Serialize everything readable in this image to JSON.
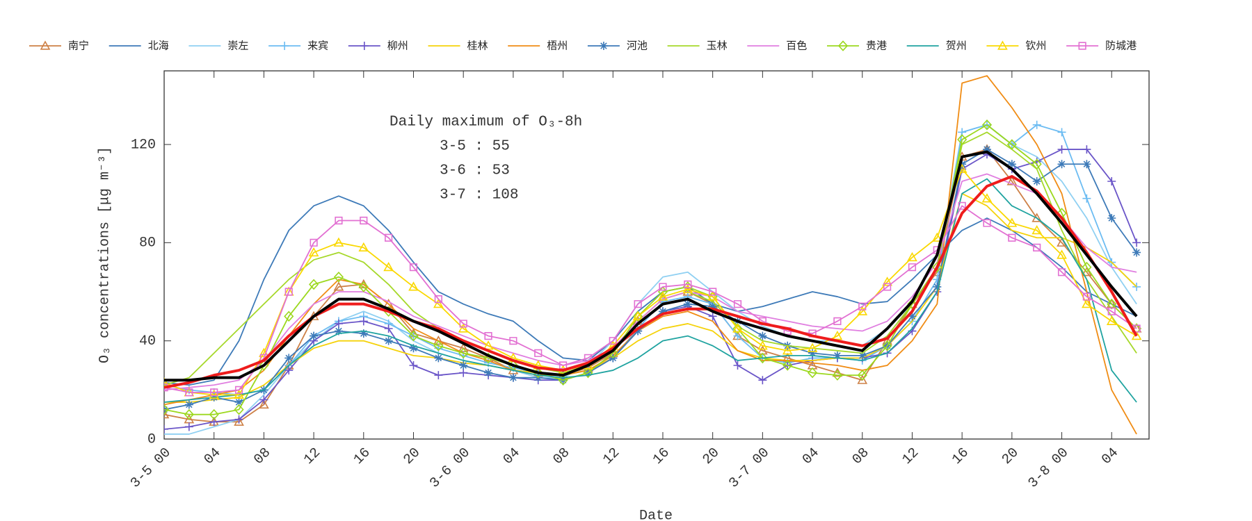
{
  "chart_data": {
    "type": "line",
    "ylabel": "O₃ concentrations [μg m⁻³]",
    "xlabel": "Date",
    "annotations": [
      "Daily maximum of O₃-8h",
      "3-5 : 55",
      "3-6 : 53",
      "3-7 : 108"
    ],
    "x": [
      0,
      2,
      4,
      6,
      8,
      10,
      12,
      14,
      16,
      18,
      20,
      22,
      24,
      26,
      28,
      30,
      32,
      34,
      36,
      38,
      40,
      42,
      44,
      46,
      48,
      50,
      52,
      54,
      56,
      58,
      60,
      62,
      64,
      66,
      68,
      70,
      72,
      74,
      76,
      78
    ],
    "xlim": [
      0,
      79
    ],
    "xticks": [
      {
        "value": 0,
        "label": "3-5 00"
      },
      {
        "value": 4,
        "label": "04"
      },
      {
        "value": 8,
        "label": "08"
      },
      {
        "value": 12,
        "label": "12"
      },
      {
        "value": 16,
        "label": "16"
      },
      {
        "value": 20,
        "label": "20"
      },
      {
        "value": 24,
        "label": "3-6 00"
      },
      {
        "value": 28,
        "label": "04"
      },
      {
        "value": 32,
        "label": "08"
      },
      {
        "value": 36,
        "label": "12"
      },
      {
        "value": 40,
        "label": "16"
      },
      {
        "value": 44,
        "label": "20"
      },
      {
        "value": 48,
        "label": "3-7 00"
      },
      {
        "value": 52,
        "label": "04"
      },
      {
        "value": 56,
        "label": "08"
      },
      {
        "value": 60,
        "label": "12"
      },
      {
        "value": 64,
        "label": "16"
      },
      {
        "value": 68,
        "label": "20"
      },
      {
        "value": 72,
        "label": "3-8 00"
      },
      {
        "value": 76,
        "label": "04"
      }
    ],
    "ylim": [
      0,
      150
    ],
    "yticks": [
      0,
      40,
      80,
      120
    ],
    "legend": "top",
    "series": [
      {
        "name": "南宁",
        "color": "#cd8046",
        "marker": "triangle",
        "values": [
          10,
          8,
          7,
          7,
          14,
          30,
          50,
          62,
          63,
          55,
          43,
          40,
          37,
          33,
          28,
          27,
          26,
          29,
          35,
          48,
          57,
          60,
          55,
          42,
          36,
          33,
          30,
          27,
          24,
          40,
          55,
          68,
          115,
          118,
          105,
          90,
          80,
          68,
          55,
          45
        ]
      },
      {
        "name": "北海",
        "color": "#3d7ab8",
        "values": [
          23,
          22,
          24,
          40,
          65,
          85,
          95,
          99,
          95,
          85,
          72,
          60,
          55,
          51,
          48,
          40,
          33,
          32,
          40,
          52,
          60,
          62,
          55,
          52,
          54,
          57,
          60,
          58,
          55,
          56,
          65,
          75,
          85,
          90,
          85,
          78,
          70,
          60,
          55,
          50
        ]
      },
      {
        "name": "崇左",
        "color": "#8fd0f2",
        "values": [
          2,
          2,
          5,
          8,
          18,
          30,
          40,
          48,
          52,
          48,
          40,
          35,
          32,
          30,
          28,
          25,
          25,
          30,
          40,
          55,
          66,
          68,
          60,
          52,
          46,
          42,
          40,
          40,
          38,
          45,
          55,
          70,
          125,
          128,
          120,
          115,
          105,
          90,
          70,
          55
        ]
      },
      {
        "name": "来宾",
        "color": "#6cbcf2",
        "marker": "plus",
        "values": [
          22,
          20,
          19,
          18,
          20,
          30,
          42,
          48,
          50,
          47,
          42,
          37,
          34,
          31,
          29,
          27,
          26,
          28,
          33,
          45,
          56,
          58,
          55,
          42,
          33,
          31,
          33,
          33,
          32,
          38,
          48,
          65,
          125,
          128,
          120,
          128,
          125,
          98,
          72,
          62
        ]
      },
      {
        "name": "柳州",
        "color": "#6a55c8",
        "marker": "plus",
        "values": [
          4,
          5,
          7,
          8,
          16,
          28,
          40,
          47,
          48,
          45,
          30,
          26,
          27,
          26,
          25,
          24,
          24,
          27,
          33,
          44,
          52,
          54,
          50,
          30,
          24,
          30,
          32,
          33,
          33,
          35,
          44,
          60,
          110,
          116,
          110,
          113,
          118,
          118,
          105,
          80
        ]
      },
      {
        "name": "桂林",
        "color": "#f5d20a",
        "values": [
          15,
          15,
          16,
          17,
          22,
          30,
          37,
          40,
          40,
          37,
          34,
          33,
          31,
          30,
          28,
          27,
          26,
          28,
          33,
          40,
          45,
          47,
          44,
          36,
          33,
          32,
          32,
          33,
          33,
          38,
          48,
          62,
          100,
          95,
          85,
          82,
          82,
          78,
          72,
          62
        ]
      },
      {
        "name": "梧州",
        "color": "#f08c14",
        "values": [
          14,
          16,
          18,
          20,
          28,
          42,
          55,
          65,
          63,
          55,
          45,
          40,
          35,
          32,
          28,
          26,
          26,
          28,
          34,
          44,
          50,
          52,
          48,
          36,
          32,
          32,
          31,
          30,
          28,
          30,
          40,
          55,
          145,
          148,
          135,
          120,
          100,
          60,
          20,
          2
        ]
      },
      {
        "name": "河池",
        "color": "#3d7ab8",
        "marker": "star",
        "values": [
          12,
          14,
          17,
          15,
          20,
          33,
          42,
          44,
          43,
          40,
          37,
          33,
          30,
          27,
          25,
          25,
          24,
          27,
          33,
          44,
          52,
          55,
          54,
          48,
          42,
          38,
          35,
          34,
          34,
          38,
          50,
          62,
          112,
          118,
          112,
          105,
          112,
          112,
          90,
          76
        ]
      },
      {
        "name": "玉林",
        "color": "#a6d82a",
        "values": [
          22,
          25,
          35,
          45,
          55,
          65,
          73,
          76,
          72,
          63,
          52,
          45,
          40,
          36,
          32,
          29,
          27,
          30,
          36,
          48,
          57,
          60,
          56,
          46,
          40,
          38,
          37,
          36,
          35,
          42,
          55,
          70,
          120,
          125,
          118,
          110,
          85,
          65,
          50,
          35
        ]
      },
      {
        "name": "百色",
        "color": "#e07ee0",
        "values": [
          20,
          21,
          22,
          24,
          32,
          45,
          55,
          60,
          60,
          56,
          50,
          46,
          42,
          38,
          35,
          32,
          30,
          32,
          37,
          48,
          57,
          60,
          58,
          52,
          50,
          48,
          46,
          45,
          44,
          48,
          58,
          72,
          105,
          108,
          104,
          100,
          90,
          78,
          70,
          68
        ]
      },
      {
        "name": "贵港",
        "color": "#9cd81e",
        "marker": "diamond",
        "values": [
          12,
          10,
          10,
          12,
          30,
          50,
          63,
          66,
          62,
          52,
          42,
          38,
          35,
          33,
          30,
          27,
          24,
          27,
          35,
          50,
          60,
          62,
          58,
          45,
          33,
          30,
          27,
          26,
          26,
          38,
          55,
          70,
          122,
          128,
          120,
          112,
          92,
          70,
          55,
          45
        ]
      },
      {
        "name": "贺州",
        "color": "#1fa3a0",
        "values": [
          15,
          16,
          17,
          18,
          20,
          30,
          38,
          43,
          44,
          42,
          38,
          35,
          32,
          30,
          28,
          26,
          25,
          26,
          28,
          33,
          40,
          42,
          38,
          32,
          33,
          34,
          34,
          33,
          32,
          35,
          45,
          60,
          100,
          106,
          95,
          90,
          82,
          65,
          28,
          15
        ]
      },
      {
        "name": "钦州",
        "color": "#fad800",
        "marker": "triangle",
        "values": [
          23,
          19,
          18,
          18,
          35,
          60,
          76,
          80,
          78,
          70,
          62,
          55,
          45,
          38,
          33,
          30,
          28,
          30,
          38,
          50,
          58,
          61,
          58,
          45,
          38,
          36,
          37,
          42,
          52,
          64,
          74,
          82,
          110,
          98,
          88,
          85,
          75,
          55,
          48,
          42
        ]
      },
      {
        "name": "防城港",
        "color": "#e270d2",
        "marker": "square",
        "values": [
          21,
          19,
          19,
          20,
          33,
          60,
          80,
          89,
          89,
          82,
          70,
          57,
          47,
          42,
          40,
          35,
          30,
          33,
          40,
          55,
          62,
          63,
          60,
          55,
          48,
          44,
          43,
          48,
          54,
          62,
          70,
          77,
          95,
          88,
          82,
          78,
          68,
          58,
          52,
          45
        ]
      },
      {
        "color": "#ee1c1c",
        "width": 4,
        "values": [
          21,
          23,
          26,
          28,
          32,
          42,
          50,
          55,
          55,
          52,
          48,
          45,
          40,
          36,
          32,
          29,
          28,
          31,
          37,
          45,
          51,
          53,
          53,
          50,
          47,
          45,
          42,
          40,
          38,
          41,
          52,
          70,
          92,
          103,
          107,
          101,
          90,
          76,
          60,
          42
        ]
      },
      {
        "color": "#000000",
        "width": 4,
        "values": [
          24,
          24,
          25,
          25,
          30,
          40,
          50,
          57,
          57,
          53,
          48,
          44,
          39,
          34,
          30,
          27,
          26,
          30,
          36,
          47,
          55,
          57,
          52,
          48,
          45,
          42,
          40,
          38,
          36,
          45,
          56,
          75,
          115,
          117,
          110,
          100,
          88,
          75,
          62,
          50
        ]
      }
    ]
  }
}
